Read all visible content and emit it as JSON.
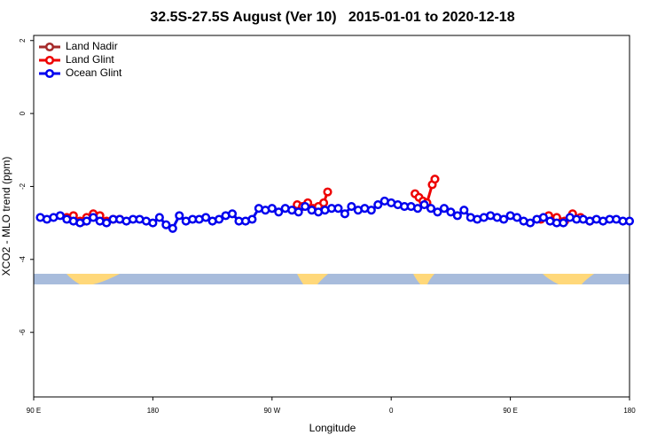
{
  "chart_data": {
    "type": "line",
    "title": "32.5S-27.5S August (Ver 10)   2015-01-01 to 2020-12-18",
    "xlabel": "Longitude",
    "ylabel": "XCO2 - MLO trend (ppm)",
    "xlim": [
      90,
      540
    ],
    "xticks": [
      {
        "value": 90,
        "label": "90 E"
      },
      {
        "value": 180,
        "label": "180"
      },
      {
        "value": 270,
        "label": "90 W"
      },
      {
        "value": 360,
        "label": "0"
      },
      {
        "value": 450,
        "label": "90 E"
      },
      {
        "value": 540,
        "label": "180"
      }
    ],
    "ylim": [
      -7.77,
      2.14
    ],
    "yticks": [
      -6,
      -4,
      -2,
      0,
      2
    ],
    "legend": "top-left",
    "series": [
      {
        "name": "Land Nadir",
        "color": "#a52a2a",
        "x": [
          128,
          300,
          487
        ],
        "values": [
          -2.95,
          null,
          -2.95
        ]
      },
      {
        "name": "Land Glint",
        "color": "#ee0000",
        "x": [
          115,
          120,
          125,
          130,
          135,
          140,
          145,
          150,
          155,
          220,
          289,
          293,
          297,
          301,
          305,
          309,
          312,
          350,
          378,
          381,
          384,
          387,
          391,
          393,
          440,
          473,
          479,
          485,
          491,
          497,
          503,
          510
        ],
        "values": [
          -2.85,
          -2.8,
          -2.95,
          -2.85,
          -2.75,
          -2.8,
          -2.95,
          -2.9,
          -2.9,
          null,
          -2.5,
          -2.55,
          -2.45,
          -2.6,
          -2.55,
          -2.45,
          -2.15,
          null,
          -2.2,
          -2.3,
          -2.4,
          -2.45,
          -1.95,
          -1.8,
          null,
          -2.9,
          -2.8,
          -2.85,
          -2.95,
          -2.75,
          -2.85,
          -2.95
        ]
      },
      {
        "name": "Ocean Glint",
        "color": "#0000ee",
        "x": [
          95,
          100,
          105,
          110,
          115,
          120,
          125,
          130,
          135,
          140,
          145,
          150,
          155,
          160,
          165,
          170,
          175,
          180,
          185,
          190,
          195,
          200,
          205,
          210,
          215,
          220,
          225,
          230,
          235,
          240,
          245,
          250,
          255,
          260,
          265,
          270,
          275,
          280,
          285,
          290,
          295,
          300,
          305,
          310,
          315,
          320,
          325,
          330,
          335,
          340,
          345,
          350,
          355,
          360,
          365,
          370,
          375,
          380,
          385,
          390,
          395,
          400,
          405,
          410,
          415,
          420,
          425,
          430,
          435,
          440,
          445,
          450,
          455,
          460,
          465,
          470,
          475,
          480,
          485,
          490,
          495,
          500,
          505,
          510,
          515,
          520,
          525,
          530,
          535,
          540
        ],
        "values": [
          -2.85,
          -2.9,
          -2.85,
          -2.8,
          -2.9,
          -2.95,
          -3.0,
          -2.95,
          -2.85,
          -2.95,
          -3.0,
          -2.9,
          -2.9,
          -2.95,
          -2.9,
          -2.9,
          -2.95,
          -3.0,
          -2.85,
          -3.05,
          -3.15,
          -2.8,
          -2.95,
          -2.9,
          -2.9,
          -2.85,
          -2.95,
          -2.9,
          -2.8,
          -2.75,
          -2.95,
          -2.95,
          -2.9,
          -2.6,
          -2.65,
          -2.6,
          -2.7,
          -2.6,
          -2.65,
          -2.7,
          -2.55,
          -2.65,
          -2.7,
          -2.65,
          -2.6,
          -2.6,
          -2.75,
          -2.55,
          -2.65,
          -2.6,
          -2.65,
          -2.5,
          -2.4,
          -2.45,
          -2.5,
          -2.55,
          -2.55,
          -2.6,
          -2.5,
          -2.6,
          -2.7,
          -2.6,
          -2.7,
          -2.8,
          -2.65,
          -2.85,
          -2.9,
          -2.85,
          -2.8,
          -2.85,
          -2.9,
          -2.8,
          -2.85,
          -2.95,
          -3.0,
          -2.9,
          -2.85,
          -2.95,
          -3.0,
          -3.0,
          -2.85,
          -2.9,
          -2.9,
          -2.95,
          -2.9,
          -2.95,
          -2.9,
          -2.9,
          -2.95,
          -2.95
        ]
      }
    ]
  }
}
